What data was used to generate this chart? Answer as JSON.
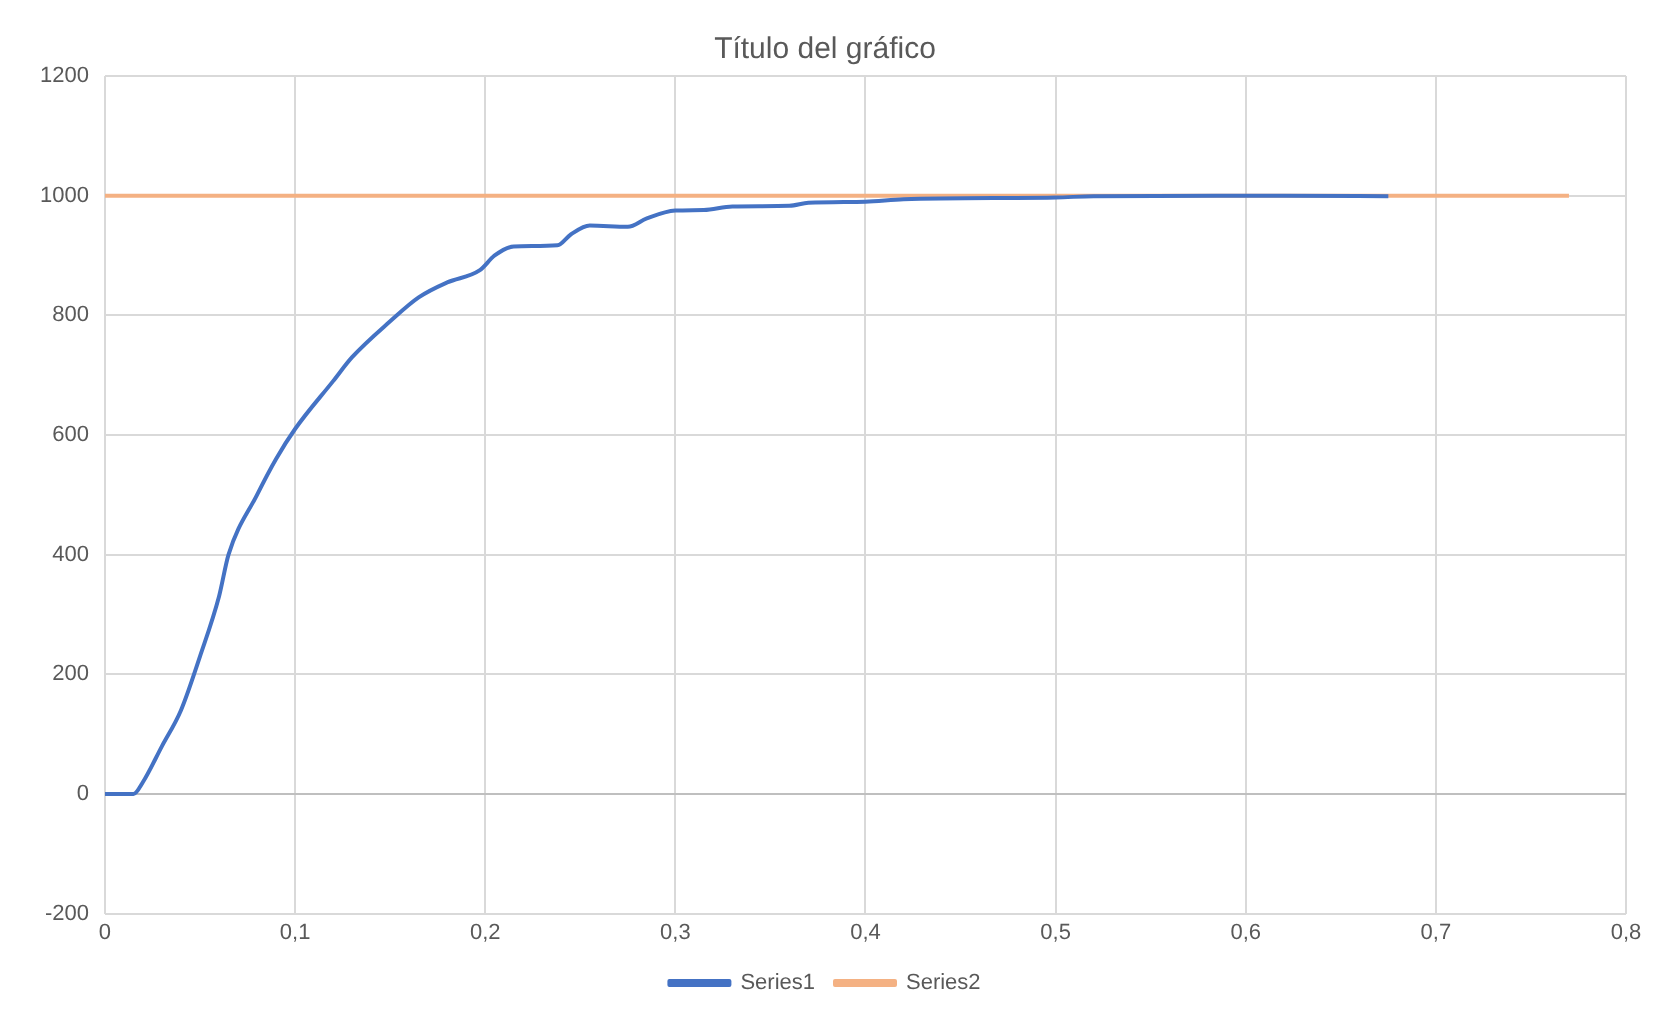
{
  "chart_data": {
    "type": "line",
    "title": "Título del gráfico",
    "xlim": [
      0,
      0.8
    ],
    "xticks": [
      0,
      {
        "value": 0.1,
        "label": "0,1"
      },
      {
        "value": 0.2,
        "label": "0,2"
      },
      {
        "value": 0.3,
        "label": "0,3"
      },
      {
        "value": 0.4,
        "label": "0,4"
      },
      {
        "value": 0.5,
        "label": "0,5"
      },
      {
        "value": 0.6,
        "label": "0,6"
      },
      {
        "value": 0.7,
        "label": "0,7"
      },
      {
        "value": 0.8,
        "label": "0,8"
      }
    ],
    "ylim": [
      -200,
      1200
    ],
    "yticks": [
      -200,
      0,
      200,
      400,
      600,
      800,
      1000,
      1200
    ],
    "grid": true,
    "legend": "bottom",
    "marker": "none",
    "line_style": "solid",
    "series": [
      {
        "name": "Series1",
        "color": "#4472c4",
        "x": [
          0,
          0.015,
          0.02,
          0.03,
          0.04,
          0.05,
          0.06,
          0.065,
          0.08,
          0.09,
          0.1,
          0.12,
          0.13,
          0.15,
          0.165,
          0.18,
          0.197,
          0.205,
          0.215,
          0.238,
          0.245,
          0.255,
          0.275,
          0.285,
          0.3,
          0.315,
          0.33,
          0.36,
          0.37,
          0.4,
          0.42,
          0.5,
          0.52,
          0.62,
          0.675
        ],
        "values": [
          0,
          0,
          20,
          80,
          140,
          230,
          330,
          400,
          500,
          560,
          610,
          690,
          730,
          790,
          830,
          855,
          875,
          900,
          915,
          917,
          935,
          950,
          948,
          962,
          975,
          976,
          982,
          983,
          988,
          990,
          994,
          997,
          999,
          1000,
          999
        ]
      },
      {
        "name": "Series2",
        "color": "#f4b183",
        "x": [
          0,
          0.77
        ],
        "values": [
          1000,
          1000
        ]
      }
    ]
  }
}
